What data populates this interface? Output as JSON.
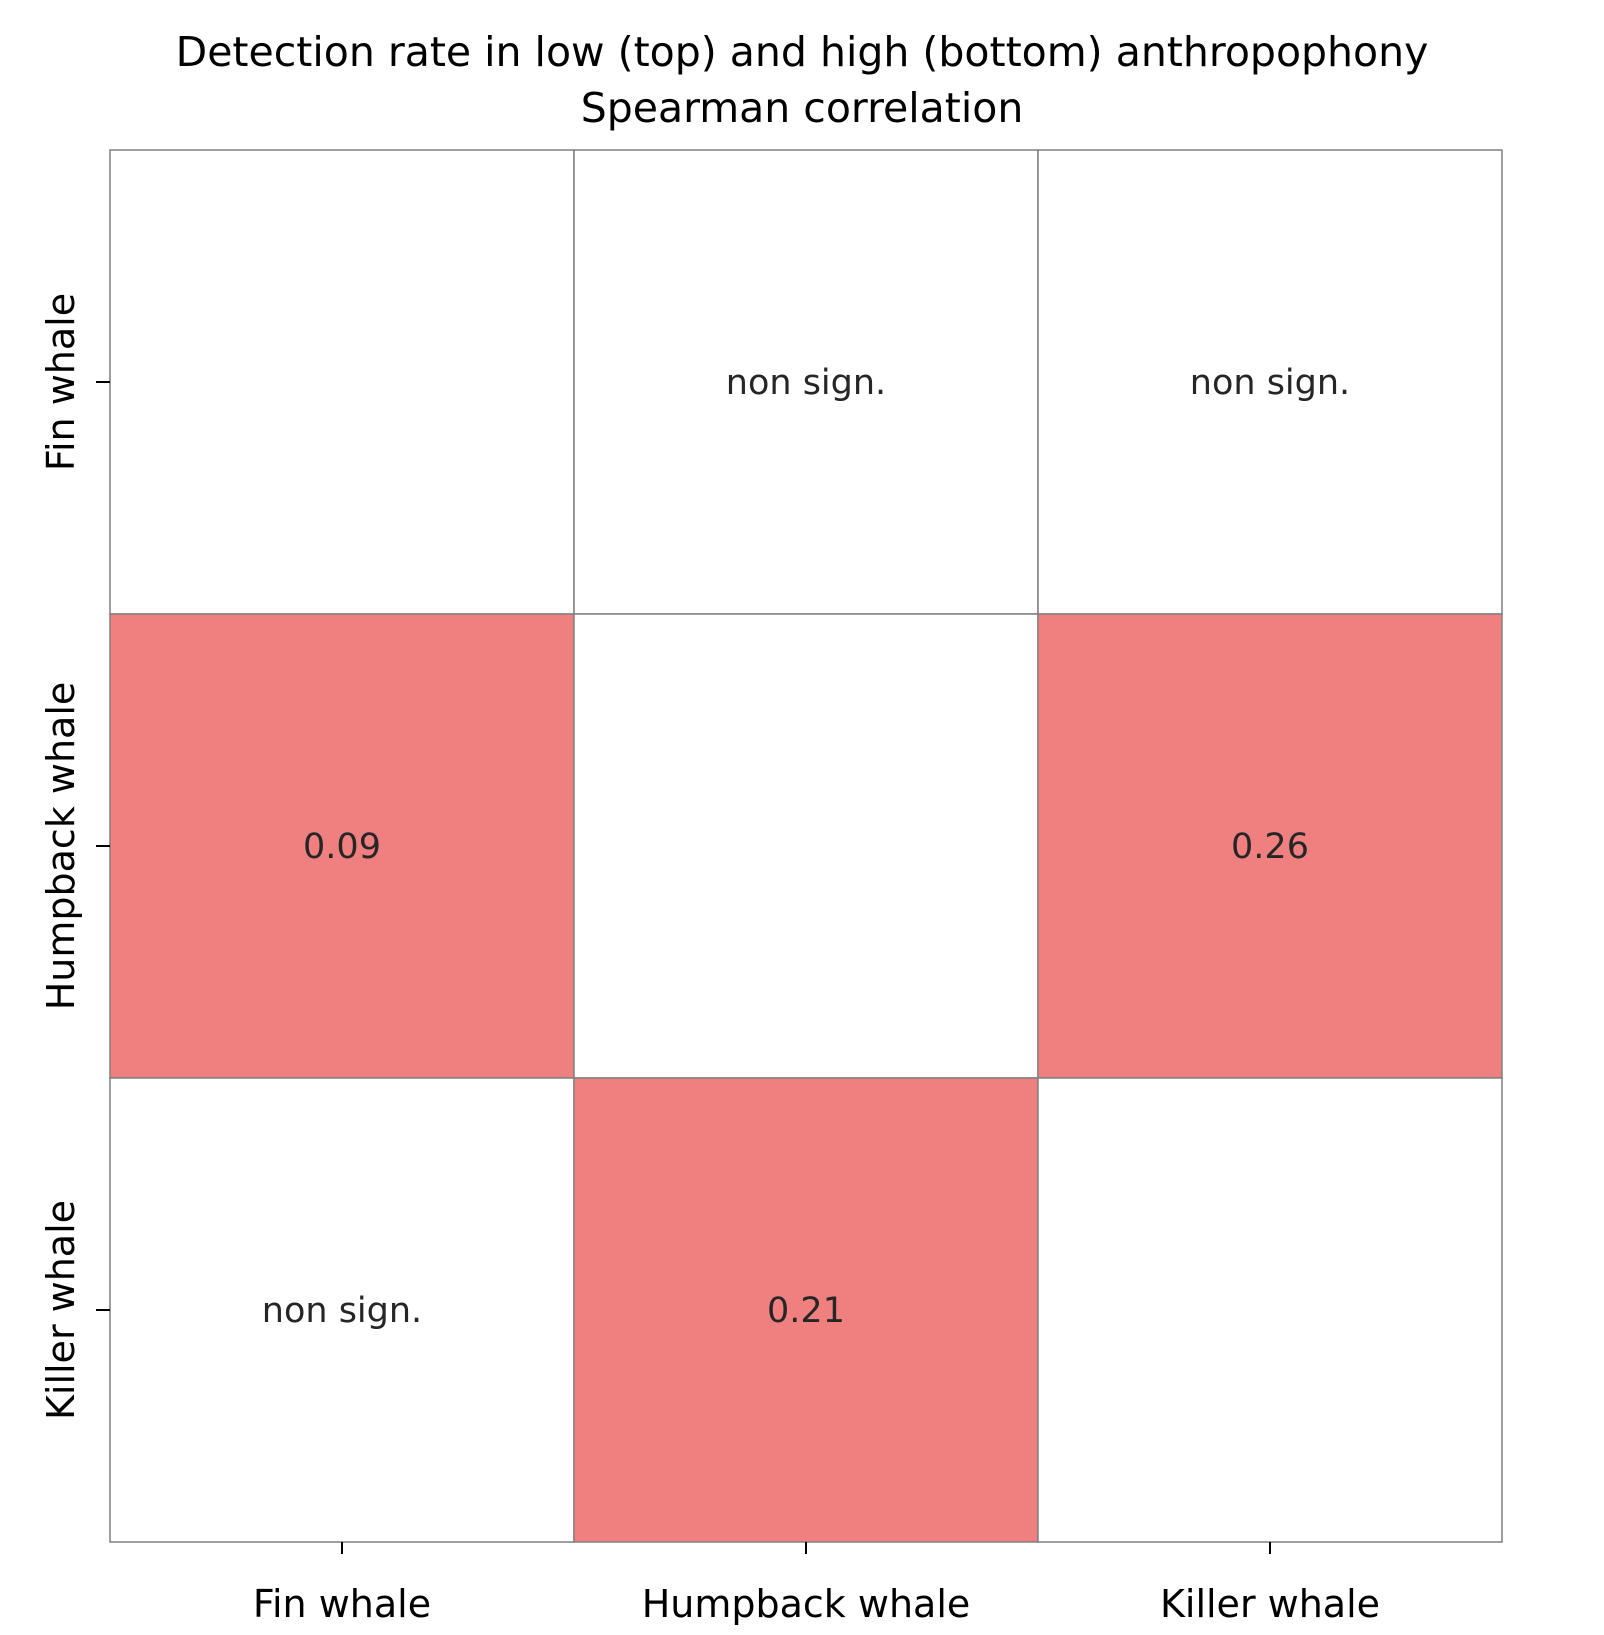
{
  "chart_data": {
    "type": "heatmap",
    "title": "Detection rate in low (top) and high (bottom) anthropophony",
    "subtitle": "Spearman correlation",
    "x_categories": [
      "Fin whale",
      "Humpback whale",
      "Killer whale"
    ],
    "y_categories": [
      "Fin whale",
      "Humpback whale",
      "Killer whale"
    ],
    "cells": [
      [
        "",
        "non sign.",
        "non sign."
      ],
      [
        "0.09",
        "",
        "0.26"
      ],
      [
        "non sign.",
        "0.21",
        ""
      ]
    ],
    "values": [
      [
        null,
        null,
        null
      ],
      [
        0.09,
        null,
        0.26
      ],
      [
        null,
        0.21,
        null
      ]
    ],
    "colors": {
      "significant": "#F08080",
      "empty": "#FFFFFF",
      "grid": "#808080",
      "text": "#262626"
    },
    "legend": "none"
  }
}
